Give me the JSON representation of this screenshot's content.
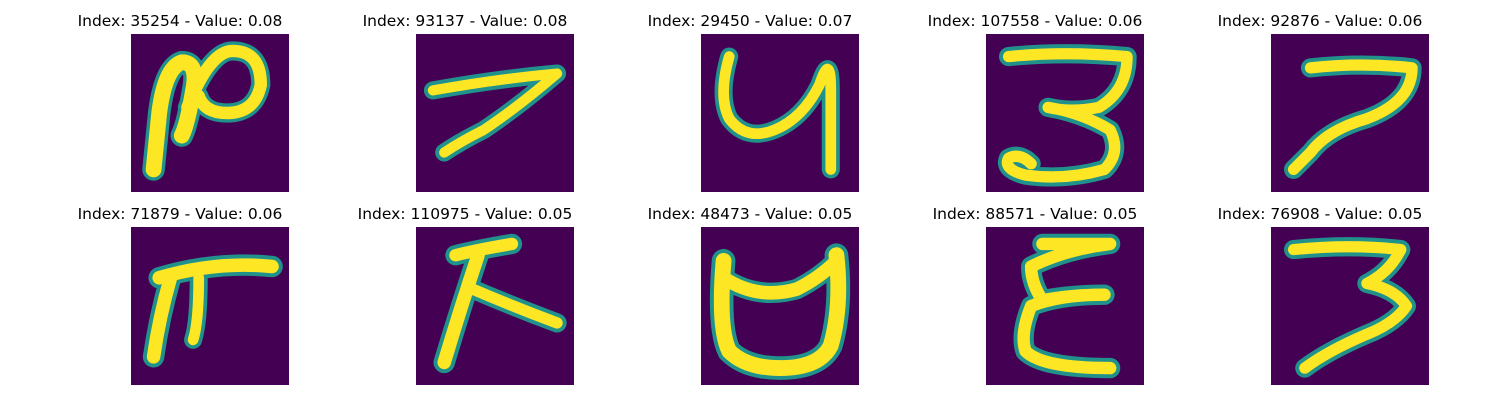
{
  "colors": {
    "background": "#440154",
    "stroke_edge": "#21918c",
    "stroke_core": "#fde725"
  },
  "grid": [
    {
      "index": "35254",
      "value": "0.08",
      "glyph": "ru-loop-icon"
    },
    {
      "index": "93137",
      "value": "0.08",
      "glyph": "seven-flat-icon"
    },
    {
      "index": "29450",
      "value": "0.07",
      "glyph": "y-loop-icon"
    },
    {
      "index": "107558",
      "value": "0.06",
      "glyph": "three-open-icon"
    },
    {
      "index": "92876",
      "value": "0.06",
      "glyph": "seven-hook-icon"
    },
    {
      "index": "71879",
      "value": "0.06",
      "glyph": "pi-like-icon"
    },
    {
      "index": "110975",
      "value": "0.05",
      "glyph": "k-like-icon"
    },
    {
      "index": "48473",
      "value": "0.05",
      "glyph": "cup-bowl-icon"
    },
    {
      "index": "88571",
      "value": "0.05",
      "glyph": "sigma-e-icon"
    },
    {
      "index": "76908",
      "value": "0.05",
      "glyph": "three-seven-icon"
    }
  ]
}
